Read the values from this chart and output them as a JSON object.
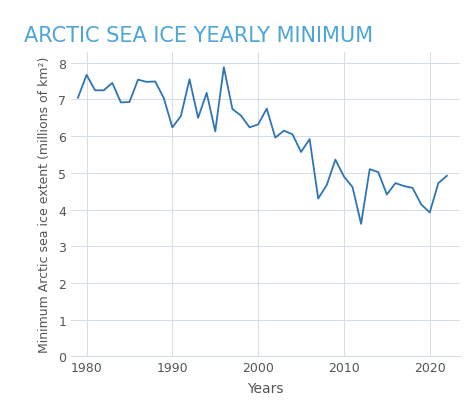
{
  "title": "ARCTIC SEA ICE YEARLY MINIMUM",
  "xlabel": "Years",
  "ylabel": "Minimum Arctic sea ice extent (millions of km²)",
  "line_color": "#2e75b6",
  "background_color": "#ffffff",
  "grid_color": "#d5dde8",
  "title_color": "#4da6d8",
  "label_color": "#555555",
  "tick_color": "#555555",
  "ylim": [
    0,
    8.3
  ],
  "yticks": [
    0,
    1,
    2,
    3,
    4,
    5,
    6,
    7,
    8
  ],
  "xlim": [
    1978.2,
    2023.5
  ],
  "xticks": [
    1980,
    1990,
    2000,
    2010,
    2020
  ],
  "years": [
    1979,
    1980,
    1981,
    1982,
    1983,
    1984,
    1985,
    1986,
    1987,
    1988,
    1989,
    1990,
    1991,
    1992,
    1993,
    1994,
    1995,
    1996,
    1997,
    1998,
    1999,
    2000,
    2001,
    2002,
    2003,
    2004,
    2005,
    2006,
    2007,
    2008,
    2009,
    2010,
    2011,
    2012,
    2013,
    2014,
    2015,
    2016,
    2017,
    2018,
    2019,
    2020,
    2021,
    2022
  ],
  "values": [
    7.05,
    7.67,
    7.25,
    7.25,
    7.45,
    6.92,
    6.93,
    7.54,
    7.48,
    7.49,
    7.04,
    6.24,
    6.55,
    7.55,
    6.5,
    7.18,
    6.13,
    7.88,
    6.74,
    6.56,
    6.24,
    6.32,
    6.75,
    5.96,
    6.15,
    6.05,
    5.57,
    5.92,
    4.3,
    4.67,
    5.36,
    4.9,
    4.61,
    3.61,
    5.1,
    5.02,
    4.41,
    4.72,
    4.64,
    4.59,
    4.14,
    3.92,
    4.72,
    4.92
  ],
  "title_fontsize": 15,
  "label_fontsize": 9,
  "tick_fontsize": 9
}
